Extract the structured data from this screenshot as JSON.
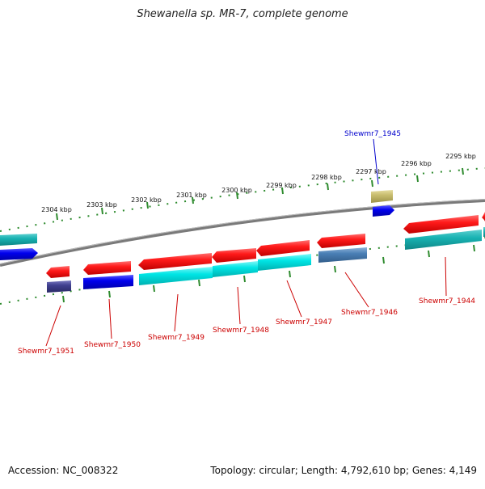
{
  "title": "Shewanella sp. MR-7, complete genome",
  "footer": {
    "accession": "Accession: NC_008322",
    "summary": "Topology: circular; Length: 4,792,610 bp; Genes: 4,149"
  },
  "scale": {
    "unit": "kbp",
    "ticks": [
      {
        "label": "2304 kbp"
      },
      {
        "label": "2303 kbp"
      },
      {
        "label": "2302 kbp"
      },
      {
        "label": "2301 kbp"
      },
      {
        "label": "2300 kbp"
      },
      {
        "label": "2299 kbp"
      },
      {
        "label": "2298 kbp"
      },
      {
        "label": "2297 kbp"
      },
      {
        "label": "2296 kbp"
      },
      {
        "label": "2295 kbp"
      }
    ]
  },
  "colors": {
    "backbone": "#808080",
    "tick": "#2e8b2e",
    "forward_gene": "#ff1a1a",
    "cds_cyan": "#00e5e5",
    "cds_teal": "#18b3b3",
    "cds_blue": "#0000ee",
    "cds_steel": "#4a7fb5",
    "cds_slate": "#3f3f8f",
    "cds_khaki": "#c8bd6e",
    "label_red": "#cc0000",
    "label_blue": "#0000cc"
  },
  "gene_labels": [
    {
      "name": "Shewmr7_1951",
      "color": "#cc0000"
    },
    {
      "name": "Shewmr7_1950",
      "color": "#cc0000"
    },
    {
      "name": "Shewmr7_1949",
      "color": "#cc0000"
    },
    {
      "name": "Shewmr7_1948",
      "color": "#cc0000"
    },
    {
      "name": "Shewmr7_1947",
      "color": "#cc0000"
    },
    {
      "name": "Shewmr7_1946",
      "color": "#cc0000"
    },
    {
      "name": "Shewmr7_1944",
      "color": "#cc0000"
    },
    {
      "name": "Shewmr7_1945",
      "color": "#0000cc"
    }
  ]
}
